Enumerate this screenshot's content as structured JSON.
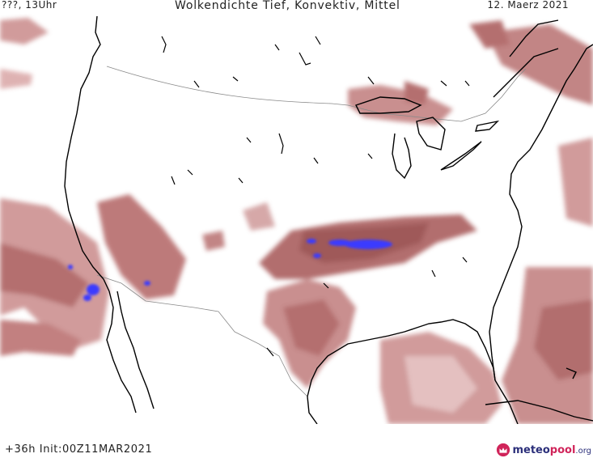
{
  "header": {
    "left": "???, 13Uhr",
    "title": "Wolkendichte   Tief, Konvektiv, Mittel",
    "date": "12. Maerz 2021"
  },
  "footer": {
    "init": "+36h  Init:00Z11MAR2021",
    "brand_meteo": "meteo",
    "brand_pool": "pool",
    "brand_org": ".org"
  },
  "legend_colors": {
    "cloud_light": "#e9c8c8",
    "cloud_mid": "#c47c7c",
    "cloud_dense": "#8e3b3b",
    "convective": "#3a3aff",
    "coast": "#000000",
    "border": "#8a8a8a"
  }
}
